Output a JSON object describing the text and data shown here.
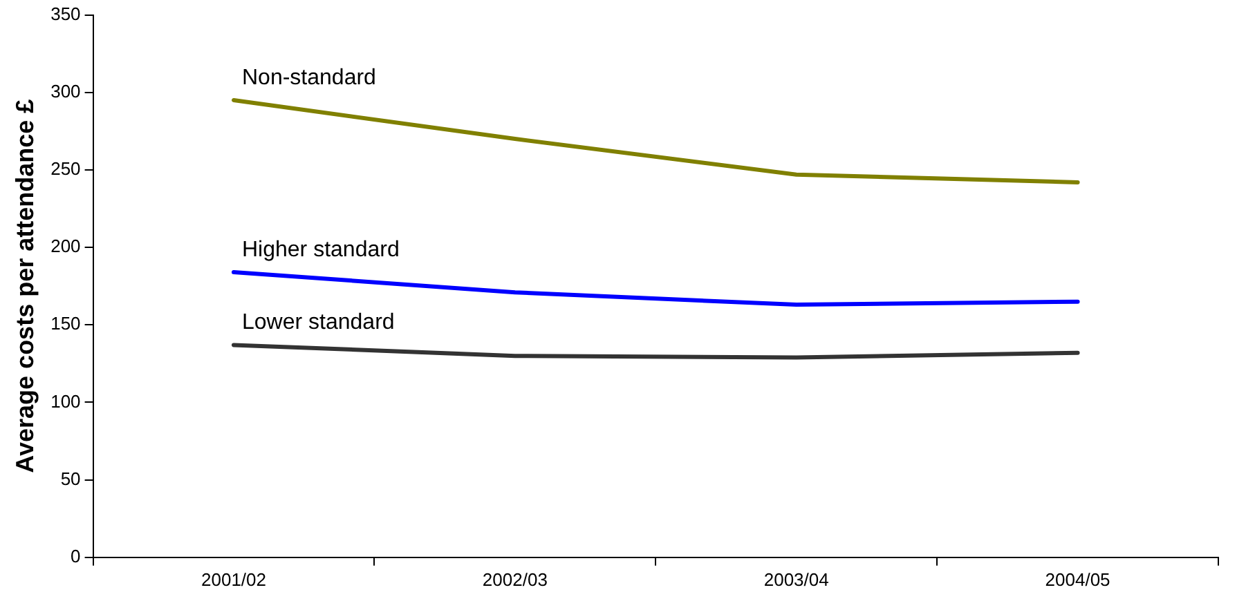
{
  "chart_data": {
    "type": "line",
    "ylabel": "Average costs per attendance £",
    "categories": [
      "2001/02",
      "2002/03",
      "2003/04",
      "2004/05"
    ],
    "series": [
      {
        "name": "Non-standard",
        "color": "#808000",
        "values": [
          295,
          270,
          247,
          242
        ]
      },
      {
        "name": "Higher standard",
        "color": "#0000ff",
        "values": [
          184,
          171,
          163,
          165
        ]
      },
      {
        "name": "Lower standard",
        "color": "#333333",
        "values": [
          137,
          130,
          129,
          132
        ]
      }
    ],
    "ylim": [
      0,
      350
    ],
    "yticks": [
      0,
      50,
      100,
      150,
      200,
      250,
      300,
      350
    ],
    "grid": false,
    "legend": false,
    "marker": "none",
    "line_style": "solid"
  }
}
